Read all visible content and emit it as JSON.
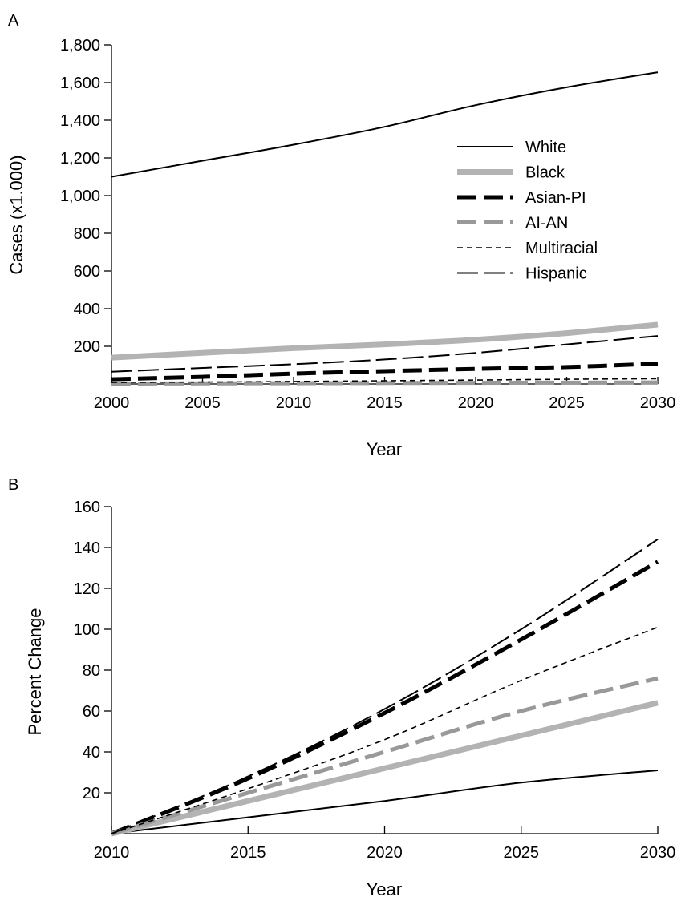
{
  "chart_data": [
    {
      "type": "line",
      "panel_label": "A",
      "xlabel": "Year",
      "ylabel": "Cases (x1.000)",
      "xlim": [
        2000,
        2030
      ],
      "ylim": [
        0,
        1800
      ],
      "xticks": [
        2000,
        2005,
        2010,
        2015,
        2020,
        2025,
        2030
      ],
      "yticks": [
        200,
        400,
        600,
        800,
        1000,
        1200,
        1400,
        1600,
        1800
      ],
      "ytick_labels": [
        "200",
        "400",
        "600",
        "800",
        "1,000",
        "1,200",
        "1,400",
        "1,600",
        "1,800"
      ],
      "legend": "center-right",
      "grid": false,
      "x": [
        2000,
        2005,
        2010,
        2015,
        2020,
        2025,
        2030
      ],
      "series": [
        {
          "name": "White",
          "style": "solid-thin",
          "color": "#000000",
          "values": [
            1100,
            1185,
            1270,
            1365,
            1480,
            1575,
            1655
          ]
        },
        {
          "name": "Black",
          "style": "solid-thick",
          "color": "#b3b3b3",
          "values": [
            140,
            165,
            190,
            210,
            235,
            270,
            315
          ]
        },
        {
          "name": "Asian-PI",
          "style": "dash-thick",
          "color": "#000000",
          "values": [
            25,
            38,
            55,
            68,
            80,
            90,
            108
          ]
        },
        {
          "name": "AI-AN",
          "style": "dash-thick",
          "color": "#999999",
          "values": [
            2,
            3,
            4,
            5,
            6,
            7,
            8
          ]
        },
        {
          "name": "Multiracial",
          "style": "dash-thin-short",
          "color": "#000000",
          "values": [
            8,
            10,
            13,
            17,
            21,
            25,
            28
          ]
        },
        {
          "name": "Hispanic",
          "style": "dash-thin-long",
          "color": "#000000",
          "values": [
            65,
            85,
            105,
            130,
            165,
            210,
            255
          ]
        }
      ]
    },
    {
      "type": "line",
      "panel_label": "B",
      "xlabel": "Year",
      "ylabel": "Percent Change",
      "xlim": [
        2010,
        2030
      ],
      "ylim": [
        0,
        160
      ],
      "xticks": [
        2010,
        2015,
        2020,
        2025,
        2030
      ],
      "yticks": [
        20,
        40,
        60,
        80,
        100,
        120,
        140,
        160
      ],
      "ytick_labels": [
        "20",
        "40",
        "60",
        "80",
        "100",
        "120",
        "140",
        "160"
      ],
      "grid": false,
      "x": [
        2010,
        2015,
        2020,
        2025,
        2030
      ],
      "series": [
        {
          "name": "White",
          "style": "solid-thin",
          "color": "#000000",
          "values": [
            0,
            8,
            16,
            25,
            31
          ]
        },
        {
          "name": "Black",
          "style": "solid-thick",
          "color": "#b3b3b3",
          "values": [
            0,
            16,
            32,
            48,
            64
          ]
        },
        {
          "name": "Asian-PI",
          "style": "dash-thick",
          "color": "#000000",
          "values": [
            0,
            27,
            59,
            95,
            133
          ]
        },
        {
          "name": "AI-AN",
          "style": "dash-thick",
          "color": "#999999",
          "values": [
            0,
            20,
            40,
            60,
            76
          ]
        },
        {
          "name": "Multiracial",
          "style": "dash-thin-short",
          "color": "#000000",
          "values": [
            0,
            22,
            46,
            75,
            101
          ]
        },
        {
          "name": "Hispanic",
          "style": "dash-thin-long",
          "color": "#000000",
          "values": [
            0,
            28,
            61,
            100,
            144
          ]
        }
      ]
    }
  ]
}
